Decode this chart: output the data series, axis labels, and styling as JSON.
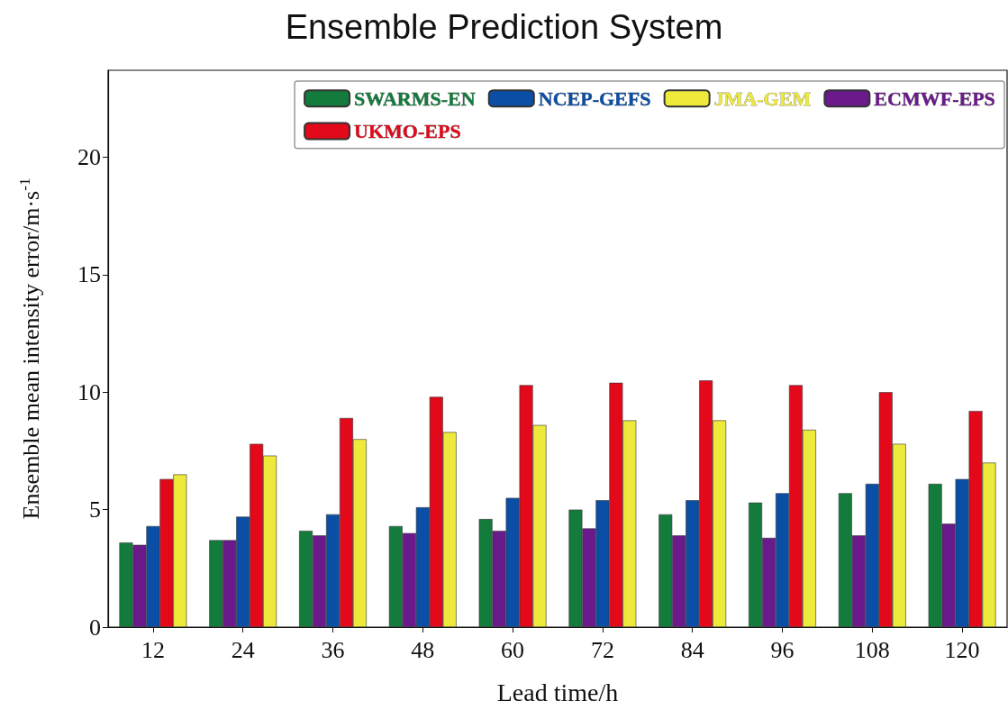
{
  "chart_data": {
    "type": "bar",
    "title": "Ensemble Prediction System",
    "xlabel": "Lead time/h",
    "ylabel": "Ensemble mean intensity error/m·s$^{-1}$",
    "categories": [
      "12",
      "24",
      "36",
      "48",
      "60",
      "72",
      "84",
      "96",
      "108",
      "120"
    ],
    "series": [
      {
        "name": "SWARMS-EN",
        "color": "#137c3c",
        "values": [
          3.6,
          3.7,
          4.1,
          4.3,
          4.6,
          5.0,
          4.8,
          5.3,
          5.7,
          6.1
        ]
      },
      {
        "name": "ECMWF-EPS",
        "color": "#6a1a8a",
        "values": [
          3.5,
          3.7,
          3.9,
          4.0,
          4.1,
          4.2,
          3.9,
          3.8,
          3.9,
          4.4
        ]
      },
      {
        "name": "NCEP-GEFS",
        "color": "#0a4ea6",
        "values": [
          4.3,
          4.7,
          4.8,
          5.1,
          5.5,
          5.4,
          5.4,
          5.7,
          6.1,
          6.3
        ]
      },
      {
        "name": "UKMO-EPS",
        "color": "#e3091a",
        "values": [
          6.3,
          7.8,
          8.9,
          9.8,
          10.3,
          10.4,
          10.5,
          10.3,
          10.0,
          9.2
        ]
      },
      {
        "name": "JMA-GEM",
        "color": "#eeea3c",
        "values": [
          6.5,
          7.3,
          8.0,
          8.3,
          8.6,
          8.8,
          8.8,
          8.4,
          7.8,
          7.0
        ]
      }
    ],
    "ylim": [
      0,
      23.7
    ],
    "yticks": [
      0,
      5,
      10,
      15,
      20
    ],
    "grid": false,
    "legend": "top right"
  }
}
